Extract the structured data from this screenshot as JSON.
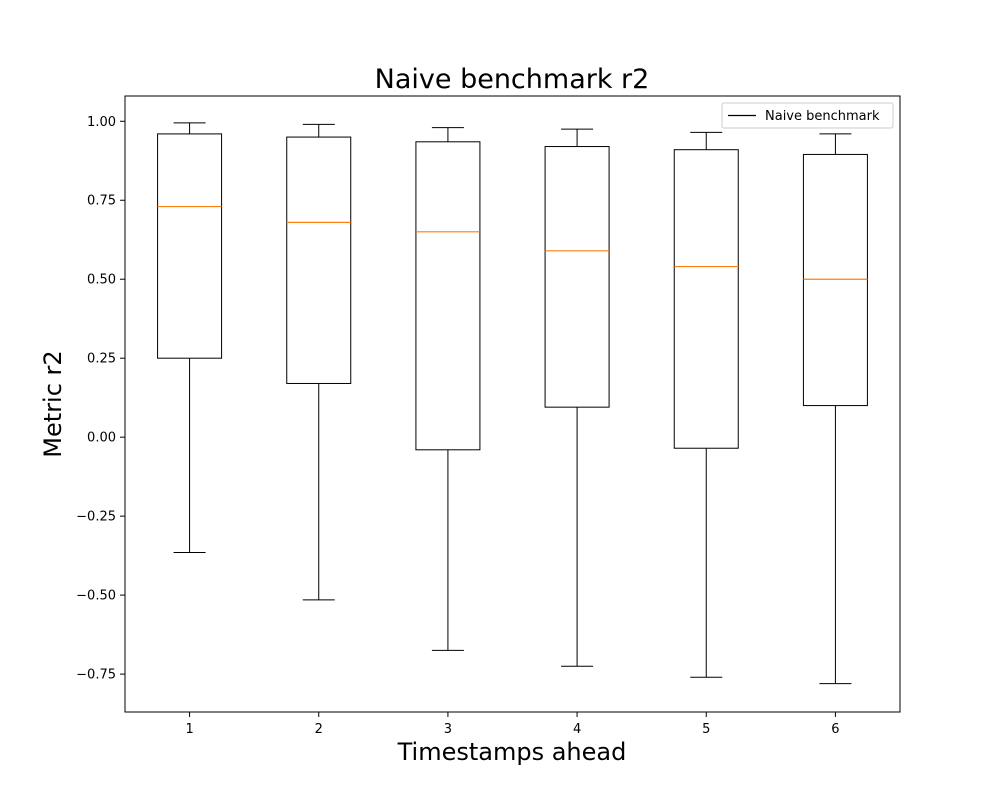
{
  "chart_data": {
    "type": "box",
    "title": "Naive benchmark r2",
    "xlabel": "Timestamps ahead",
    "ylabel": "Metric r2",
    "categories": [
      "1",
      "2",
      "3",
      "4",
      "5",
      "6"
    ],
    "ylim": [
      -0.87,
      1.08
    ],
    "yticks": [
      -0.75,
      -0.5,
      -0.25,
      0.0,
      0.25,
      0.5,
      0.75,
      1.0
    ],
    "ytick_labels": [
      "−0.75",
      "−0.50",
      "−0.25",
      "0.00",
      "0.25",
      "0.50",
      "0.75",
      "1.00"
    ],
    "series": [
      {
        "name": "Naive benchmark",
        "boxes": [
          {
            "x": "1",
            "whisker_low": -0.365,
            "q1": 0.25,
            "median": 0.73,
            "q3": 0.96,
            "whisker_high": 0.995
          },
          {
            "x": "2",
            "whisker_low": -0.515,
            "q1": 0.17,
            "median": 0.68,
            "q3": 0.95,
            "whisker_high": 0.99
          },
          {
            "x": "3",
            "whisker_low": -0.675,
            "q1": -0.04,
            "median": 0.65,
            "q3": 0.935,
            "whisker_high": 0.98
          },
          {
            "x": "4",
            "whisker_low": -0.725,
            "q1": 0.095,
            "median": 0.59,
            "q3": 0.92,
            "whisker_high": 0.975
          },
          {
            "x": "5",
            "whisker_low": -0.76,
            "q1": -0.035,
            "median": 0.54,
            "q3": 0.91,
            "whisker_high": 0.965
          },
          {
            "x": "6",
            "whisker_low": -0.78,
            "q1": 0.1,
            "median": 0.5,
            "q3": 0.895,
            "whisker_high": 0.96
          }
        ]
      }
    ],
    "colors": {
      "box": "#000000",
      "median": "#ff7f0e",
      "legend_line": "#000000"
    },
    "legend_position": "top-right",
    "grid": false
  }
}
